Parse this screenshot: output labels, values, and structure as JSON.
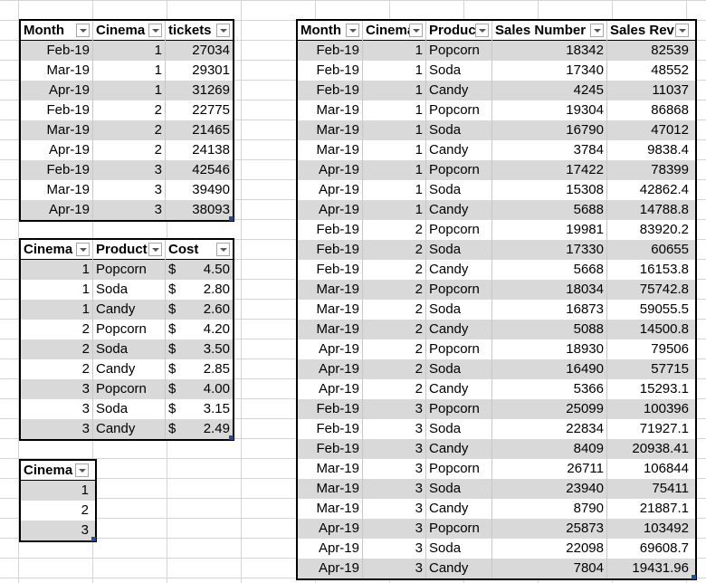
{
  "table_tickets": {
    "headers": [
      "Month",
      "Cinema",
      "tickets"
    ],
    "rows": [
      [
        "Feb-19",
        "1",
        "27034"
      ],
      [
        "Mar-19",
        "1",
        "29301"
      ],
      [
        "Apr-19",
        "1",
        "31269"
      ],
      [
        "Feb-19",
        "2",
        "22775"
      ],
      [
        "Mar-19",
        "2",
        "21465"
      ],
      [
        "Apr-19",
        "2",
        "24138"
      ],
      [
        "Feb-19",
        "3",
        "42546"
      ],
      [
        "Mar-19",
        "3",
        "39490"
      ],
      [
        "Apr-19",
        "3",
        "38093"
      ]
    ]
  },
  "table_cost": {
    "headers": [
      "Cinema",
      "Product",
      "Cost"
    ],
    "currency": "$",
    "rows": [
      [
        "1",
        "Popcorn",
        "4.50"
      ],
      [
        "1",
        "Soda",
        "2.80"
      ],
      [
        "1",
        "Candy",
        "2.60"
      ],
      [
        "2",
        "Popcorn",
        "4.20"
      ],
      [
        "2",
        "Soda",
        "3.50"
      ],
      [
        "2",
        "Candy",
        "2.85"
      ],
      [
        "3",
        "Popcorn",
        "4.00"
      ],
      [
        "3",
        "Soda",
        "3.15"
      ],
      [
        "3",
        "Candy",
        "2.49"
      ]
    ]
  },
  "table_cinema": {
    "headers": [
      "Cinema"
    ],
    "rows": [
      [
        "1"
      ],
      [
        "2"
      ],
      [
        "3"
      ]
    ]
  },
  "table_sales": {
    "headers": [
      "Month",
      "Cinema",
      "Produc",
      "Sales Number",
      "Sales Rev"
    ],
    "rows": [
      [
        "Feb-19",
        "1",
        "Popcorn",
        "18342",
        "82539"
      ],
      [
        "Feb-19",
        "1",
        "Soda",
        "17340",
        "48552"
      ],
      [
        "Feb-19",
        "1",
        "Candy",
        "4245",
        "11037"
      ],
      [
        "Mar-19",
        "1",
        "Popcorn",
        "19304",
        "86868"
      ],
      [
        "Mar-19",
        "1",
        "Soda",
        "16790",
        "47012"
      ],
      [
        "Mar-19",
        "1",
        "Candy",
        "3784",
        "9838.4"
      ],
      [
        "Apr-19",
        "1",
        "Popcorn",
        "17422",
        "78399"
      ],
      [
        "Apr-19",
        "1",
        "Soda",
        "15308",
        "42862.4"
      ],
      [
        "Apr-19",
        "1",
        "Candy",
        "5688",
        "14788.8"
      ],
      [
        "Feb-19",
        "2",
        "Popcorn",
        "19981",
        "83920.2"
      ],
      [
        "Feb-19",
        "2",
        "Soda",
        "17330",
        "60655"
      ],
      [
        "Feb-19",
        "2",
        "Candy",
        "5668",
        "16153.8"
      ],
      [
        "Mar-19",
        "2",
        "Popcorn",
        "18034",
        "75742.8"
      ],
      [
        "Mar-19",
        "2",
        "Soda",
        "16873",
        "59055.5"
      ],
      [
        "Mar-19",
        "2",
        "Candy",
        "5088",
        "14500.8"
      ],
      [
        "Apr-19",
        "2",
        "Popcorn",
        "18930",
        "79506"
      ],
      [
        "Apr-19",
        "2",
        "Soda",
        "16490",
        "57715"
      ],
      [
        "Apr-19",
        "2",
        "Candy",
        "5366",
        "15293.1"
      ],
      [
        "Feb-19",
        "3",
        "Popcorn",
        "25099",
        "100396"
      ],
      [
        "Feb-19",
        "3",
        "Soda",
        "22834",
        "71927.1"
      ],
      [
        "Feb-19",
        "3",
        "Candy",
        "8409",
        "20938.41"
      ],
      [
        "Mar-19",
        "3",
        "Popcorn",
        "26711",
        "106844"
      ],
      [
        "Mar-19",
        "3",
        "Soda",
        "23940",
        "75411"
      ],
      [
        "Mar-19",
        "3",
        "Candy",
        "8790",
        "21887.1"
      ],
      [
        "Apr-19",
        "3",
        "Popcorn",
        "25873",
        "103492"
      ],
      [
        "Apr-19",
        "3",
        "Soda",
        "22098",
        "69608.7"
      ],
      [
        "Apr-19",
        "3",
        "Candy",
        "7804",
        "19431.96"
      ]
    ]
  },
  "colors": {
    "band": "#d9d9d9",
    "gridline": "#d4d4d4",
    "table_border": "#000000",
    "resize_handle": "#1f4e9c"
  },
  "icons": {
    "filter_dropdown": "chevron-down-icon",
    "table_resize": "resize-handle-icon"
  }
}
